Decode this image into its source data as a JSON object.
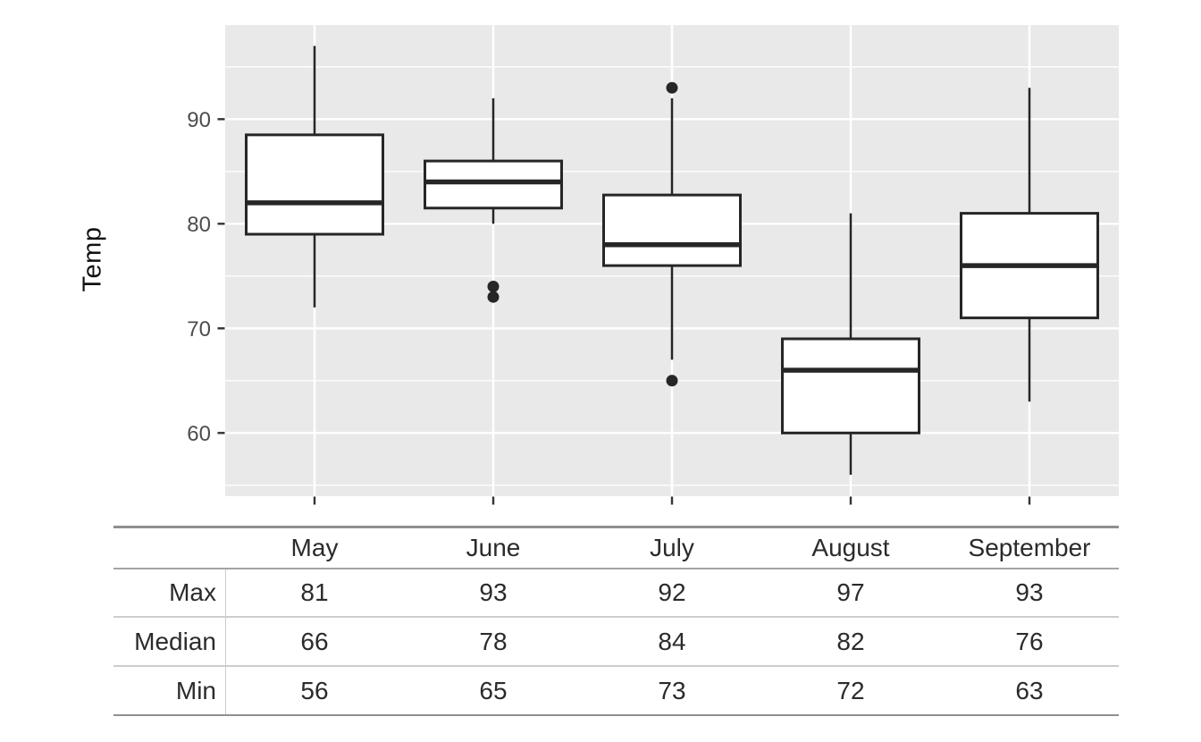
{
  "chart_data": {
    "type": "boxplot",
    "title": "",
    "xlabel": "",
    "ylabel": "Temp",
    "categories": [
      "May",
      "June",
      "July",
      "August",
      "September"
    ],
    "y_ticks": [
      90,
      80,
      70,
      60
    ],
    "ylim": [
      54,
      99
    ],
    "grid": {
      "major_y": [
        60,
        70,
        80,
        90
      ],
      "minor_y": [
        55,
        65,
        75,
        85,
        95
      ],
      "vertical_major_at_each_category": true,
      "gridlines_on": true,
      "legend": "none"
    },
    "boxes": [
      {
        "category": "May",
        "whisker_low": 72,
        "q1": 79,
        "median": 82,
        "q3": 88.5,
        "whisker_high": 97,
        "outliers": []
      },
      {
        "category": "June",
        "whisker_low": 80,
        "q1": 81.5,
        "median": 84,
        "q3": 86,
        "whisker_high": 92,
        "outliers": [
          74,
          73
        ]
      },
      {
        "category": "July",
        "whisker_low": 67,
        "q1": 76,
        "median": 78,
        "q3": 82.75,
        "whisker_high": 92,
        "outliers": [
          93,
          65
        ]
      },
      {
        "category": "August",
        "whisker_low": 56,
        "q1": 60,
        "median": 66,
        "q3": 69,
        "whisker_high": 81,
        "outliers": []
      },
      {
        "category": "September",
        "whisker_low": 63,
        "q1": 71,
        "median": 76,
        "q3": 81,
        "whisker_high": 93,
        "outliers": []
      }
    ],
    "colors": {
      "panel_background": "#e9e9e9",
      "gridline": "#ffffff",
      "box_stroke": "#262626",
      "box_fill": "#ffffff",
      "outlier_fill": "#262626",
      "axis_tick_text": "#4d4d4d",
      "tick_mark": "#333333"
    }
  },
  "table": {
    "rows": [
      {
        "label": "Max",
        "values": [
          81,
          93,
          92,
          97,
          93
        ]
      },
      {
        "label": "Median",
        "values": [
          66,
          78,
          84,
          82,
          76
        ]
      },
      {
        "label": "Min",
        "values": [
          56,
          65,
          73,
          72,
          63
        ]
      }
    ],
    "border_colors": {
      "outer": "#8f8f8f",
      "header_underline": "#a5a5a5",
      "row_separator": "#cdcdcd"
    }
  }
}
